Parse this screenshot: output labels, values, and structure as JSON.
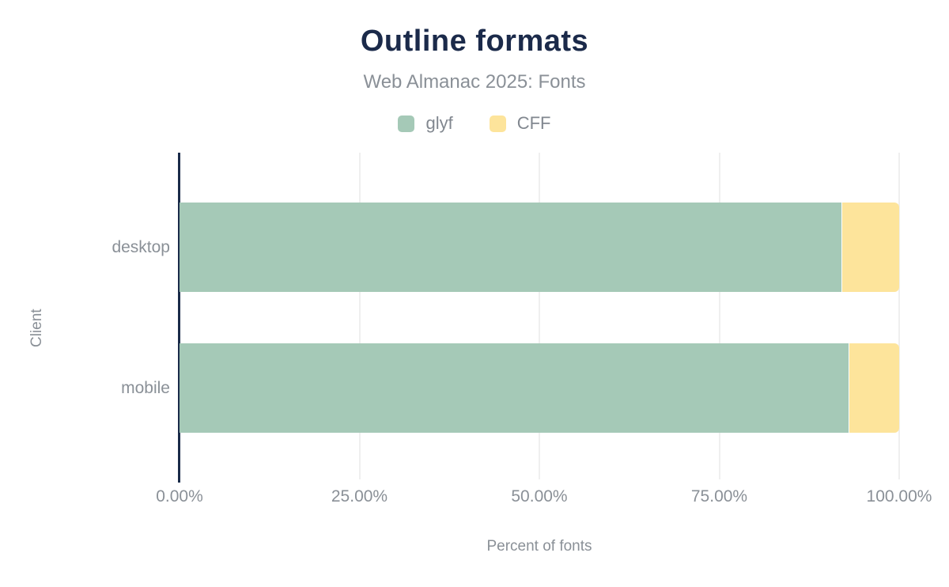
{
  "header": {
    "title": "Outline formats",
    "subtitle": "Web Almanac 2025: Fonts"
  },
  "chart_data": {
    "type": "bar",
    "orientation": "horizontal",
    "stacked": true,
    "title": "Outline formats",
    "subtitle": "Web Almanac 2025: Fonts",
    "categories": [
      "desktop",
      "mobile"
    ],
    "series": [
      {
        "name": "glyf",
        "color": "#a5c9b7",
        "values": [
          92,
          93
        ]
      },
      {
        "name": "CFF",
        "color": "#fde49b",
        "values": [
          8,
          7
        ]
      }
    ],
    "xlabel": "Percent of fonts",
    "ylabel": "Client",
    "xlim": [
      0,
      100
    ],
    "x_ticks": [
      "0.00%",
      "25.00%",
      "50.00%",
      "75.00%",
      "100.00%"
    ],
    "x_tick_values": [
      0,
      25,
      50,
      75,
      100
    ],
    "grid": "vertical-only",
    "legend_position": "top"
  },
  "colors": {
    "title_text": "#1b2a4a",
    "muted_text": "#8a9097",
    "axis_line": "#1a2b49",
    "gridline": "#efefef",
    "background": "#ffffff"
  }
}
